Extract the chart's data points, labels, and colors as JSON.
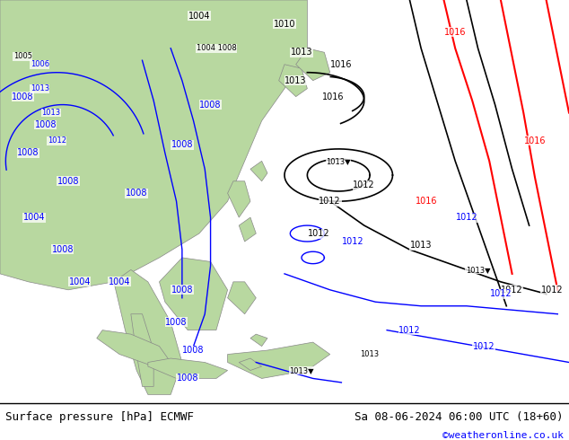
{
  "fig_width": 6.34,
  "fig_height": 4.9,
  "dpi": 100,
  "map_bg": "#ccd9e8",
  "land_color": "#b8d8a0",
  "land_edge": "#888888",
  "footer_bg": "#ffffff",
  "footer_left_text": "Surface pressure [hPa] ECMWF",
  "footer_right_text": "Sa 08-06-2024 06:00 UTC (18+60)",
  "footer_credit": "©weatheronline.co.uk",
  "blue_lw": 1.0,
  "black_lw": 1.2,
  "red_lw": 1.5
}
